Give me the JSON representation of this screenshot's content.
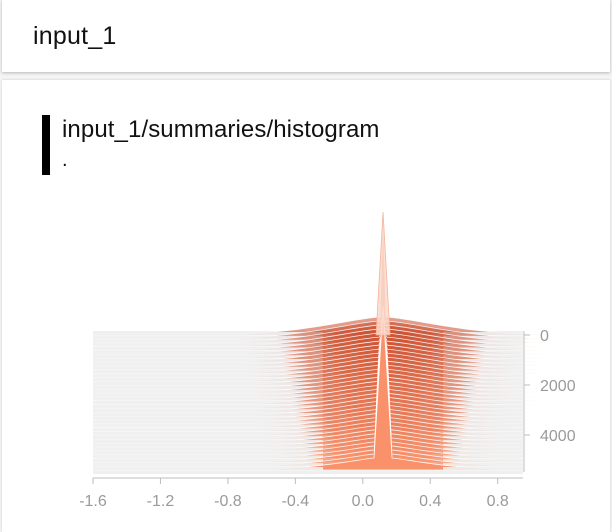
{
  "header": {
    "title": "input_1"
  },
  "card": {
    "tag_name": "input_1/summaries/histogram",
    "tag_sub": "."
  },
  "colors": {
    "peak": "#f9926b",
    "dark_band": "#c94a2a",
    "light_band": "#efefef",
    "axis": "#bdbdbd",
    "tick_text": "#9a9a9a"
  },
  "chart_data": {
    "type": "area",
    "x_ticks": [
      "-1.6",
      "-1.2",
      "-0.8",
      "-0.4",
      "0.0",
      "0.4",
      "0.8"
    ],
    "x_tick_values": [
      -1.6,
      -1.2,
      -0.8,
      -0.4,
      0.0,
      0.4,
      0.8
    ],
    "y_ticks": [
      "0",
      "2000",
      "4000"
    ],
    "y_tick_values": [
      0,
      2000,
      4000
    ],
    "xlim": [
      -1.6,
      0.95
    ],
    "ylim": [
      0,
      5400
    ],
    "distribution_center": 0.12,
    "peak_relative_height": 1.0
  }
}
